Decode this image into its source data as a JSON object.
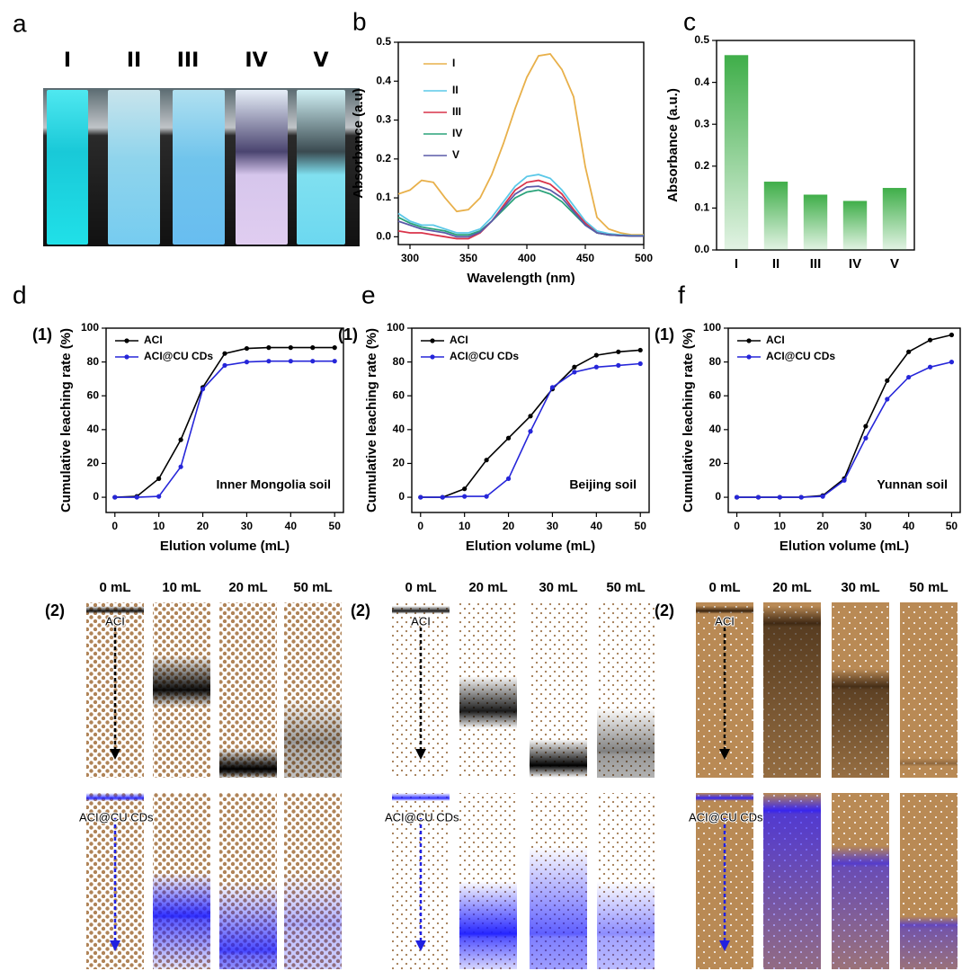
{
  "panel_a": {
    "panel": "a",
    "samples": [
      "I",
      "II",
      "III",
      "IV",
      "V"
    ]
  },
  "chart_data": [
    {
      "type": "line",
      "panel": "b",
      "x_label": "Wavelength (nm)",
      "y_label": "Absorbance (a.u)",
      "x": [
        290,
        300,
        310,
        320,
        330,
        340,
        350,
        360,
        370,
        380,
        390,
        400,
        410,
        420,
        430,
        440,
        450,
        460,
        470,
        480,
        490,
        500
      ],
      "series": [
        {
          "name": "I",
          "color": "#e8b04a",
          "values": [
            0.11,
            0.12,
            0.145,
            0.14,
            0.1,
            0.065,
            0.07,
            0.1,
            0.16,
            0.24,
            0.33,
            0.41,
            0.465,
            0.47,
            0.43,
            0.36,
            0.18,
            0.05,
            0.02,
            0.01,
            0.005,
            0.005
          ]
        },
        {
          "name": "II",
          "color": "#5bc8e8",
          "values": [
            0.06,
            0.04,
            0.03,
            0.03,
            0.02,
            0.01,
            0.01,
            0.02,
            0.05,
            0.09,
            0.13,
            0.155,
            0.16,
            0.15,
            0.12,
            0.08,
            0.04,
            0.015,
            0.008,
            0.005,
            0.003,
            0.003
          ]
        },
        {
          "name": "III",
          "color": "#d9334a",
          "values": [
            0.015,
            0.01,
            0.01,
            0.005,
            0.0,
            -0.005,
            -0.005,
            0.01,
            0.04,
            0.08,
            0.12,
            0.14,
            0.145,
            0.135,
            0.11,
            0.07,
            0.035,
            0.01,
            0.005,
            0.003,
            0.002,
            0.002
          ]
        },
        {
          "name": "IV",
          "color": "#2aa37a",
          "values": [
            0.05,
            0.035,
            0.025,
            0.02,
            0.015,
            0.005,
            0.005,
            0.015,
            0.04,
            0.07,
            0.1,
            0.115,
            0.12,
            0.11,
            0.09,
            0.06,
            0.03,
            0.01,
            0.005,
            0.003,
            0.002,
            0.002
          ]
        },
        {
          "name": "V",
          "color": "#5a5aa8",
          "values": [
            0.04,
            0.03,
            0.02,
            0.015,
            0.01,
            0.0,
            0.0,
            0.012,
            0.04,
            0.075,
            0.11,
            0.128,
            0.13,
            0.12,
            0.1,
            0.065,
            0.03,
            0.01,
            0.005,
            0.003,
            0.002,
            0.002
          ]
        }
      ],
      "xlim": [
        290,
        500
      ],
      "xticks": [
        300,
        350,
        400,
        450,
        500
      ],
      "ylim": [
        -0.02,
        0.5
      ],
      "yticks": [
        {
          "value": 0,
          "label": "0.0"
        },
        0.1,
        0.2,
        0.3,
        0.4,
        0.5
      ],
      "markers": false
    },
    {
      "type": "bar",
      "panel": "c",
      "y_label": "Absorbance (a.u.)",
      "categories": [
        "I",
        "II",
        "III",
        "IV",
        "V"
      ],
      "values": [
        0.465,
        0.163,
        0.132,
        0.117,
        0.148
      ],
      "color": "#3fae49",
      "ylim": [
        0,
        0.5
      ],
      "yticks": [
        {
          "value": 0,
          "label": "0.0"
        },
        0.1,
        0.2,
        0.3,
        0.4,
        0.5
      ]
    },
    {
      "type": "line",
      "panel": "d",
      "sub_label": "(1)",
      "annotation": "Inner Mongolia soil",
      "x_label": "Elution volume (mL)",
      "y_label": "Cumulative leaching rate (%)",
      "x": [
        0,
        5,
        10,
        15,
        20,
        25,
        30,
        35,
        40,
        45,
        50
      ],
      "series": [
        {
          "name": "ACI",
          "color": "#000000",
          "values": [
            0,
            0.5,
            11,
            34,
            65,
            85,
            88,
            88.5,
            88.5,
            88.5,
            88.5
          ]
        },
        {
          "name": "ACI@CU CDs",
          "color": "#2626d9",
          "values": [
            0,
            0,
            0.5,
            18,
            64,
            78,
            80,
            80.5,
            80.5,
            80.5,
            80.5
          ]
        }
      ],
      "xlim": [
        -2,
        52
      ],
      "xticks": [
        0,
        10,
        20,
        30,
        40,
        50
      ],
      "ylim": [
        -9,
        100
      ],
      "yticks": [
        0,
        20,
        40,
        60,
        80,
        100
      ],
      "markers": true
    },
    {
      "type": "line",
      "panel": "e",
      "sub_label": "(1)",
      "annotation": "Beijing soil",
      "x_label": "Elution volume (mL)",
      "y_label": "Cumulative leaching rate (%)",
      "x": [
        0,
        5,
        10,
        15,
        20,
        25,
        30,
        35,
        40,
        45,
        50
      ],
      "series": [
        {
          "name": "ACI",
          "color": "#000000",
          "values": [
            0,
            0,
            5,
            22,
            35,
            48,
            64,
            77,
            84,
            86,
            87
          ]
        },
        {
          "name": "ACI@CU CDs",
          "color": "#2626d9",
          "values": [
            0,
            0,
            0.5,
            0.5,
            11,
            39,
            65,
            74,
            77,
            78,
            79
          ]
        }
      ],
      "xlim": [
        -2,
        52
      ],
      "xticks": [
        0,
        10,
        20,
        30,
        40,
        50
      ],
      "ylim": [
        -9,
        100
      ],
      "yticks": [
        0,
        20,
        40,
        60,
        80,
        100
      ],
      "markers": true
    },
    {
      "type": "line",
      "panel": "f",
      "sub_label": "(1)",
      "annotation": "Yunnan soil",
      "x_label": "Elution volume (mL)",
      "y_label": "Cumulative leaching rate (%)",
      "x": [
        0,
        5,
        10,
        15,
        20,
        25,
        30,
        35,
        40,
        45,
        50
      ],
      "series": [
        {
          "name": "ACI",
          "color": "#000000",
          "values": [
            0,
            0,
            0,
            0,
            1,
            11,
            42,
            69,
            86,
            93,
            96
          ]
        },
        {
          "name": "ACI@CU CDs",
          "color": "#2626d9",
          "values": [
            0,
            0,
            0,
            0,
            0.5,
            10,
            35,
            58,
            71,
            77,
            80
          ]
        }
      ],
      "xlim": [
        -2,
        52
      ],
      "xticks": [
        0,
        10,
        20,
        30,
        40,
        50
      ],
      "ylim": [
        -9,
        100
      ],
      "yticks": [
        0,
        20,
        40,
        60,
        80,
        100
      ],
      "markers": true
    }
  ],
  "columns": [
    {
      "sub_label": "(2)",
      "volumes": [
        "0 mL",
        "10 mL",
        "20 mL",
        "50 mL"
      ],
      "top_label": "ACI",
      "bottom_label": "ACI@CU CDs"
    },
    {
      "sub_label": "(2)",
      "volumes": [
        "0 mL",
        "20 mL",
        "30 mL",
        "50 mL"
      ],
      "top_label": "ACI",
      "bottom_label": "ACI@CU CDs"
    },
    {
      "sub_label": "(2)",
      "volumes": [
        "0 mL",
        "20 mL",
        "30 mL",
        "50 mL"
      ],
      "top_label": "ACI",
      "bottom_label": "ACI@CU CDs"
    }
  ]
}
